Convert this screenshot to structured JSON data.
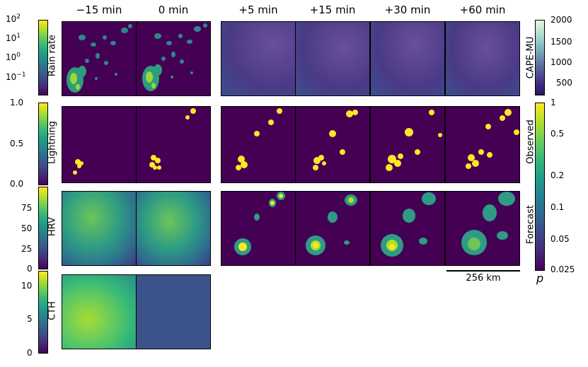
{
  "columns": [
    "−15 min",
    "0 min",
    "+5 min",
    "+15 min",
    "+30 min",
    "+60 min"
  ],
  "rows": {
    "rain": {
      "label": "Rain rate",
      "ticks": [
        {
          "base": "10",
          "exp": "2"
        },
        {
          "base": "10",
          "exp": "1"
        },
        {
          "base": "10",
          "exp": "0"
        },
        {
          "base": "10",
          "exp": "−1"
        }
      ]
    },
    "lightning": {
      "label": "Lightning",
      "ticks": [
        "1.0",
        "0.5",
        "0.0"
      ]
    },
    "hrv": {
      "label": "HRV",
      "ticks": [
        "75",
        "50",
        "25",
        "0"
      ]
    },
    "cth": {
      "label": "CTH",
      "ticks": [
        "10",
        "5",
        "0"
      ]
    }
  },
  "right_colorbars": {
    "cape": {
      "label": "CAPE-MU",
      "ticks": [
        "2000",
        "1500",
        "1000",
        "500"
      ]
    },
    "prob": {
      "ticks": [
        "1",
        "0.5",
        "0.2",
        "0.1",
        "0.05",
        "0.025"
      ],
      "symbol": "p",
      "observed_label": "Observed",
      "forecast_label": "Forecast"
    }
  },
  "scale_bar": "256 km",
  "chart_data": {
    "type": "heatmap",
    "title": "",
    "panel_grid": {
      "column_times_min": [
        -15,
        0,
        5,
        15,
        30,
        60
      ],
      "rows": [
        "Rain rate",
        "Lightning",
        "HRV",
        "CTH"
      ],
      "forecast_columns": [
        "+5 min",
        "+15 min",
        "+30 min",
        "+60 min"
      ],
      "forecast_rows": [
        "CAPE-MU",
        "Observed",
        "Forecast"
      ]
    },
    "colorbars": [
      {
        "name": "Rain rate",
        "scale": "log",
        "range": [
          0.05,
          100
        ],
        "ticks": [
          0.1,
          1,
          10,
          100
        ],
        "colormap": "viridis"
      },
      {
        "name": "Lightning",
        "scale": "linear",
        "range": [
          0,
          1
        ],
        "ticks": [
          0,
          0.5,
          1
        ],
        "colormap": "viridis"
      },
      {
        "name": "HRV",
        "scale": "linear",
        "range": [
          0,
          100
        ],
        "ticks": [
          0,
          25,
          50,
          75
        ],
        "colormap": "viridis"
      },
      {
        "name": "CTH",
        "scale": "linear",
        "range": [
          0,
          12
        ],
        "ticks": [
          0,
          5,
          10
        ],
        "colormap": "viridis"
      },
      {
        "name": "CAPE-MU",
        "scale": "linear",
        "range": [
          0,
          2000
        ],
        "ticks": [
          500,
          1000,
          1500,
          2000
        ]
      },
      {
        "name": "p",
        "scale": "log",
        "range": [
          0.025,
          1
        ],
        "ticks": [
          0.025,
          0.05,
          0.1,
          0.2,
          0.5,
          1
        ],
        "colormap": "viridis"
      }
    ],
    "scale_bar_km": 256,
    "colors": {
      "low": "#440154",
      "high": "#fde725",
      "cape_bg": "#4a3a86"
    }
  }
}
